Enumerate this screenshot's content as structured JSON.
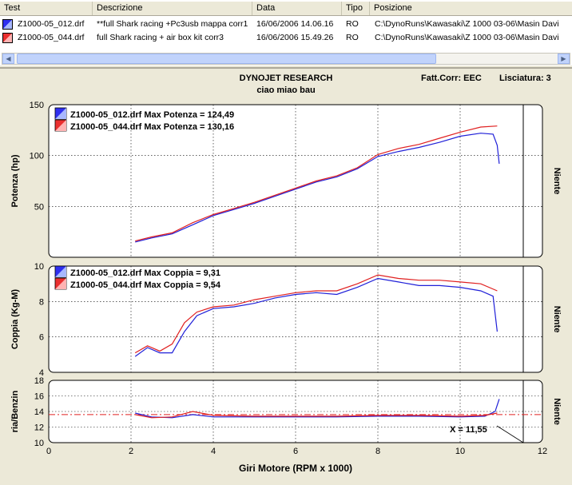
{
  "list": {
    "columns": [
      "Test",
      "Descrizione",
      "Data",
      "Tipo",
      "Posizione"
    ],
    "rows": [
      {
        "test": "Z1000-05_012.drf",
        "desc": "**full Shark racing +Pc3usb mappa corr1",
        "date": "16/06/2006 14.06.16",
        "type": "RO",
        "pos": "C:\\DynoRuns\\Kawasaki\\Z 1000 03-06\\Masin Davi",
        "color": "blue"
      },
      {
        "test": "Z1000-05_044.drf",
        "desc": "full Shark racing + air box kit corr3",
        "date": "16/06/2006 15.49.26",
        "type": "RO",
        "pos": "C:\\DynoRuns\\Kawasaki\\Z 1000 03-06\\Masin Davi",
        "color": "red"
      }
    ]
  },
  "header": {
    "company": "DYNOJET RESEARCH",
    "subtitle": "ciao miao bau",
    "correction": "Fatt.Corr: EEC",
    "smoothing": "Lisciatura: 3"
  },
  "colors": {
    "run1": "#2020d8",
    "run2": "#e02020",
    "afr_ref": "#e02020"
  },
  "chart_data": [
    {
      "type": "line",
      "ylabel": "Potenza (hp)",
      "right_label": "Niente",
      "ylim": [
        0,
        150
      ],
      "yticks": [
        50,
        100,
        150
      ],
      "xlim": [
        0,
        12
      ],
      "legend": [
        "Z1000-05_012.drf Max Potenza = 124,49",
        "Z1000-05_044.drf Max Potenza = 130,16"
      ],
      "series": [
        {
          "name": "Z1000-05_012.drf",
          "x": [
            2.1,
            2.5,
            3.0,
            3.5,
            4.0,
            4.5,
            5.0,
            5.5,
            6.0,
            6.5,
            7.0,
            7.5,
            8.0,
            8.5,
            9.0,
            9.5,
            10.0,
            10.5,
            10.8,
            10.9,
            10.95
          ],
          "y": [
            15,
            19,
            23,
            32,
            41,
            47,
            53,
            60,
            67,
            74,
            79,
            87,
            99,
            104,
            108,
            113,
            119,
            122,
            121,
            110,
            92
          ]
        },
        {
          "name": "Z1000-05_044.drf",
          "x": [
            2.1,
            2.5,
            3.0,
            3.5,
            4.0,
            4.5,
            5.0,
            5.5,
            6.0,
            6.5,
            7.0,
            7.5,
            8.0,
            8.5,
            9.0,
            9.5,
            10.0,
            10.5,
            10.9
          ],
          "y": [
            16,
            20,
            24,
            34,
            42,
            48,
            54,
            61,
            68,
            75,
            80,
            88,
            101,
            107,
            111,
            117,
            123,
            128,
            129
          ]
        }
      ]
    },
    {
      "type": "line",
      "ylabel": "Coppia (Kg-M)",
      "right_label": "Niente",
      "ylim": [
        4,
        10
      ],
      "yticks": [
        4,
        6,
        8,
        10
      ],
      "xlim": [
        0,
        12
      ],
      "legend": [
        "Z1000-05_012.drf Max Coppia = 9,31",
        "Z1000-05_044.drf Max Coppia = 9,54"
      ],
      "series": [
        {
          "name": "Z1000-05_012.drf",
          "x": [
            2.1,
            2.4,
            2.7,
            3.0,
            3.3,
            3.6,
            4.0,
            4.5,
            5.0,
            5.5,
            6.0,
            6.5,
            7.0,
            7.5,
            8.0,
            8.5,
            9.0,
            9.5,
            10.0,
            10.5,
            10.8,
            10.9
          ],
          "y": [
            4.9,
            5.4,
            5.1,
            5.1,
            6.3,
            7.2,
            7.6,
            7.7,
            7.9,
            8.2,
            8.4,
            8.5,
            8.4,
            8.8,
            9.3,
            9.1,
            8.9,
            8.9,
            8.8,
            8.6,
            8.3,
            6.3
          ]
        },
        {
          "name": "Z1000-05_044.drf",
          "x": [
            2.1,
            2.4,
            2.7,
            3.0,
            3.3,
            3.6,
            4.0,
            4.5,
            5.0,
            5.5,
            6.0,
            6.5,
            7.0,
            7.5,
            8.0,
            8.5,
            9.0,
            9.5,
            10.0,
            10.5,
            10.9
          ],
          "y": [
            5.1,
            5.5,
            5.2,
            5.6,
            6.8,
            7.4,
            7.7,
            7.8,
            8.1,
            8.3,
            8.5,
            8.6,
            8.6,
            9.0,
            9.5,
            9.3,
            9.2,
            9.2,
            9.1,
            9.0,
            8.6
          ]
        }
      ]
    },
    {
      "type": "line",
      "ylabel": "ria/Benzin",
      "right_label": "Niente",
      "ylim": [
        10,
        18
      ],
      "yticks": [
        10,
        12,
        14,
        16,
        18
      ],
      "xlim": [
        0,
        12
      ],
      "xticks": [
        0,
        2,
        4,
        6,
        8,
        10,
        12
      ],
      "xlabel": "Giri Motore (RPM x 1000)",
      "reference_y": 13.6,
      "cursor_x": 11.55,
      "cursor_label": "X = 11,55",
      "series": [
        {
          "name": "Z1000-05_012.drf",
          "x": [
            2.1,
            2.5,
            3.0,
            3.5,
            4.0,
            5.0,
            6.0,
            7.0,
            8.0,
            9.0,
            10.0,
            10.6,
            10.85,
            10.95
          ],
          "y": [
            13.8,
            13.3,
            13.2,
            13.6,
            13.3,
            13.3,
            13.3,
            13.3,
            13.4,
            13.4,
            13.3,
            13.4,
            14.0,
            15.6
          ]
        },
        {
          "name": "Z1000-05_044.drf",
          "x": [
            2.1,
            2.5,
            3.0,
            3.5,
            4.0,
            5.0,
            6.0,
            7.0,
            8.0,
            9.0,
            10.0,
            10.6,
            10.9
          ],
          "y": [
            13.6,
            13.2,
            13.3,
            14.0,
            13.5,
            13.4,
            13.4,
            13.4,
            13.5,
            13.5,
            13.4,
            13.5,
            13.8
          ]
        }
      ]
    }
  ]
}
